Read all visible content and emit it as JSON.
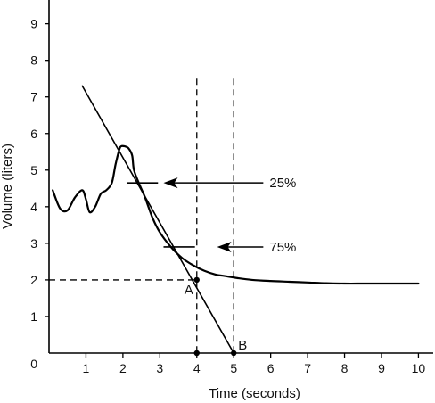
{
  "chart_data": {
    "type": "line",
    "xlabel": "Time (seconds)",
    "ylabel": "Volume (liters)",
    "xlim": [
      0,
      10.4
    ],
    "ylim": [
      0,
      9.6
    ],
    "x_ticks": [
      1,
      2,
      3,
      4,
      5,
      6,
      7,
      8,
      9,
      10
    ],
    "y_ticks": [
      1,
      2,
      3,
      4,
      5,
      6,
      7,
      8,
      9
    ],
    "origin_label": "0",
    "grid": false,
    "series": [
      {
        "x": [
          0.1,
          0.3,
          0.5,
          0.7,
          0.9,
          1.0,
          1.1,
          1.25,
          1.4,
          1.55,
          1.7,
          1.8,
          1.9,
          1.95,
          2.05,
          2.15,
          2.25,
          2.3,
          2.45,
          2.6,
          2.8,
          3.0,
          3.3,
          3.6,
          3.9,
          4.2,
          4.5,
          4.8,
          5.1,
          5.5,
          6.0,
          6.5,
          7.0,
          7.5,
          8.0,
          8.5,
          9.0,
          9.5,
          10.0
        ],
        "values": [
          4.45,
          3.95,
          3.9,
          4.25,
          4.45,
          4.2,
          3.85,
          4.0,
          4.35,
          4.45,
          4.65,
          5.15,
          5.55,
          5.65,
          5.65,
          5.6,
          5.4,
          5.0,
          4.6,
          4.25,
          3.7,
          3.3,
          2.9,
          2.6,
          2.4,
          2.25,
          2.15,
          2.1,
          2.05,
          2.0,
          1.97,
          1.95,
          1.93,
          1.91,
          1.9,
          1.9,
          1.9,
          1.9,
          1.9
        ]
      },
      {
        "x": [
          0.9,
          5.0
        ],
        "values": [
          7.3,
          0.0
        ]
      }
    ],
    "reference_lines": [
      {
        "orientation": "vertical",
        "x": 4,
        "style": "dashed",
        "range": [
          0,
          7.5
        ]
      },
      {
        "orientation": "vertical",
        "x": 5,
        "style": "dashed",
        "range": [
          0,
          7.5
        ]
      },
      {
        "orientation": "horizontal",
        "y": 2,
        "style": "dashed",
        "range": [
          0,
          4
        ]
      }
    ],
    "level_marks": [
      {
        "y": 4.65,
        "x_range": [
          2.1,
          2.95
        ]
      },
      {
        "y": 2.9,
        "x_range": [
          3.1,
          3.95
        ]
      }
    ],
    "points": [
      {
        "x": 4,
        "y": 2,
        "label": "A"
      },
      {
        "x": 4,
        "y": 0,
        "label": ""
      },
      {
        "x": 5,
        "y": 0,
        "label": "B"
      }
    ],
    "annotations": [
      {
        "text": "25%",
        "y": 4.65,
        "arrow_from_x": 5.8,
        "arrow_to_x": 3.1
      },
      {
        "text": "75%",
        "y": 2.9,
        "arrow_from_x": 5.8,
        "arrow_to_x": 4.55
      }
    ]
  }
}
